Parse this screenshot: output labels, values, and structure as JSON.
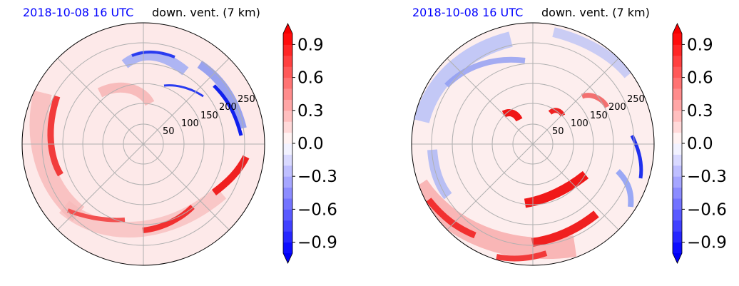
{
  "chart_data": [
    {
      "type": "heatmap",
      "projection": "polar",
      "title_date": "2018-10-08 16 UTC",
      "title": "down. vent. (7 km)",
      "range_labels": [
        "50",
        "100",
        "150",
        "200",
        "250"
      ],
      "range_values": [
        50,
        100,
        150,
        200,
        250
      ],
      "rlim": [
        0,
        300
      ],
      "grid": true,
      "colormap": "bwr",
      "colorbar": {
        "vmin": -1.0,
        "vmax": 1.0,
        "ticks": [
          0.9,
          0.6,
          0.3,
          0.0,
          -0.3,
          -0.6,
          -0.9
        ],
        "tick_labels": [
          "0.9",
          "0.6",
          "0.3",
          "0.0",
          "−0.3",
          "−0.6",
          "−0.9"
        ],
        "extend": "both",
        "placement": "right"
      }
    },
    {
      "type": "heatmap",
      "projection": "polar",
      "title_date": "2018-10-08 16 UTC",
      "title": "down. vent. (7 km)",
      "range_labels": [
        "50",
        "100",
        "150",
        "200",
        "250"
      ],
      "range_values": [
        50,
        100,
        150,
        200,
        250
      ],
      "rlim": [
        0,
        300
      ],
      "grid": true,
      "colormap": "bwr",
      "colorbar": {
        "vmin": -1.0,
        "vmax": 1.0,
        "ticks": [
          0.9,
          0.6,
          0.3,
          0.0,
          -0.3,
          -0.6,
          -0.9
        ],
        "tick_labels": [
          "0.9",
          "0.6",
          "0.3",
          "0.0",
          "−0.3",
          "−0.6",
          "−0.9"
        ],
        "extend": "both",
        "placement": "right"
      }
    }
  ]
}
